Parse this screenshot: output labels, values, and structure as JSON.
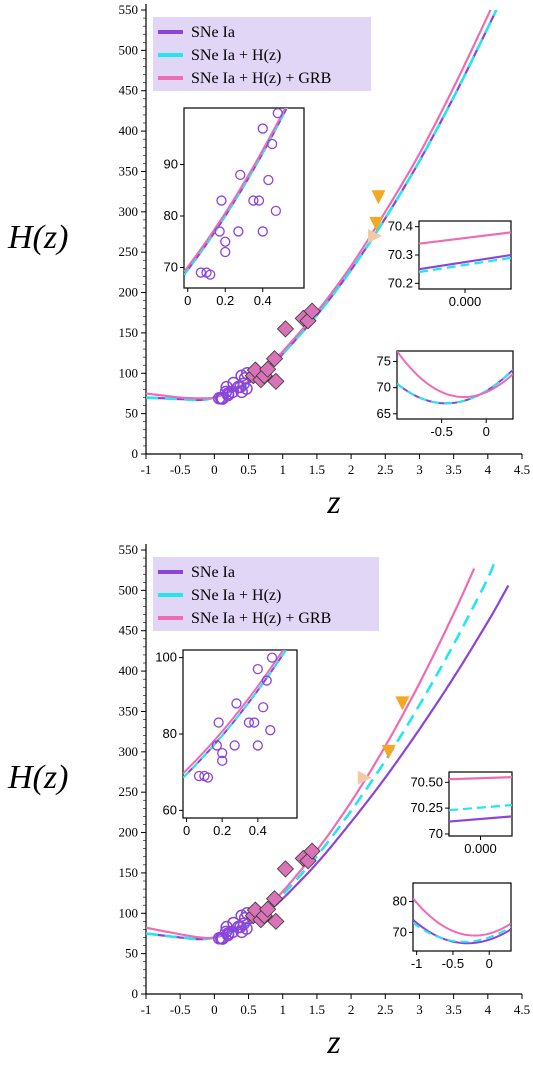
{
  "chart_data": [
    {
      "type": "line",
      "ylabel": "H(z)",
      "xlabel": "z",
      "xlim": [
        -1,
        4.5
      ],
      "ylim": [
        0,
        550
      ],
      "xticks": [
        "-1",
        "-0.5",
        "0",
        "0.5",
        "1",
        "1.5",
        "2",
        "2.5",
        "3",
        "3.5",
        "4",
        "4.5"
      ],
      "yticks": [
        "0",
        "50",
        "100",
        "150",
        "200",
        "250",
        "300",
        "350",
        "400",
        "450",
        "500",
        "550"
      ],
      "legend_position": "top-left",
      "series": [
        {
          "name": "SNe Ia",
          "color": "#8b44d9",
          "style": "solid",
          "x": [
            -1,
            -0.5,
            -0.2,
            0,
            0.2,
            0.5,
            0.8,
            1,
            1.5,
            2,
            2.5,
            3,
            3.5,
            4,
            4.2
          ],
          "y": [
            70,
            68,
            67,
            70,
            76,
            88,
            108,
            124,
            172,
            228,
            292,
            363,
            442,
            528,
            564
          ]
        },
        {
          "name": "SNe Ia + H(z)",
          "color": "#22e6f0",
          "style": "dashed",
          "x": [
            -1,
            -0.5,
            -0.2,
            0,
            0.2,
            0.5,
            0.8,
            1,
            1.5,
            2,
            2.5,
            3,
            3.5,
            4,
            4.2
          ],
          "y": [
            70,
            68,
            67,
            70,
            76,
            88,
            108,
            124,
            172,
            228,
            292,
            363,
            442,
            528,
            564
          ]
        },
        {
          "name": "SNe Ia + H(z) + GRB",
          "color": "#ee6cb4",
          "style": "solid",
          "x": [
            -1,
            -0.5,
            -0.2,
            0,
            0.2,
            0.5,
            0.8,
            1,
            1.5,
            2,
            2.5,
            3,
            3.5,
            4,
            4.1
          ],
          "y": [
            75,
            70,
            69,
            70,
            77,
            90,
            110,
            127,
            176,
            233,
            300,
            372,
            454,
            543,
            562
          ]
        }
      ],
      "circles": {
        "x": [
          0.07,
          0.1,
          0.12,
          0.17,
          0.18,
          0.2,
          0.2,
          0.27,
          0.28,
          0.35,
          0.38,
          0.4,
          0.4,
          0.43,
          0.45,
          0.47,
          0.48
        ],
        "y": [
          69,
          69,
          68.6,
          77,
          83,
          75,
          73,
          77,
          88,
          83,
          83,
          77,
          97,
          87,
          94,
          81,
          100
        ]
      },
      "diamonds": {
        "x": [
          0.57,
          0.6,
          0.68,
          0.73,
          0.78,
          0.88,
          0.9,
          1.04,
          1.3,
          1.37,
          1.43
        ],
        "y": [
          97,
          104,
          92,
          97,
          105,
          118,
          90,
          155,
          168,
          165,
          177
        ]
      },
      "triangles": [
        {
          "x": 2.35,
          "y": 270,
          "color": "#f4c9a8",
          "dir": "right"
        },
        {
          "x": 2.37,
          "y": 285,
          "color": "#f5a623",
          "dir": "down"
        },
        {
          "x": 2.4,
          "y": 318,
          "color": "#f5a623",
          "dir": "down"
        }
      ],
      "inset_circles": {
        "xticks": [
          "0",
          "0.2",
          "0.4"
        ],
        "yticks": [
          "70",
          "80",
          "90"
        ],
        "xlim": [
          -0.02,
          0.62
        ],
        "ylim": [
          66,
          101
        ]
      },
      "inset_zoom": {
        "xticks": [
          "0.000"
        ],
        "yticks": [
          "70.2",
          "70.3",
          "70.4"
        ],
        "ylim": [
          70.18,
          70.42
        ],
        "lines": [
          {
            "series": "SNe Ia",
            "y0": 70.25,
            "y1": 70.3
          },
          {
            "series": "SNe Ia + H(z)",
            "y0": 70.24,
            "y1": 70.29
          },
          {
            "series": "SNe Ia + H(z) + GRB",
            "y0": 70.34,
            "y1": 70.38
          }
        ]
      },
      "inset_low": {
        "xticks": [
          "-0.5",
          "0"
        ],
        "yticks": [
          "65",
          "70",
          "75"
        ],
        "xlim": [
          -1,
          0.3
        ],
        "ylim": [
          64,
          77
        ]
      }
    },
    {
      "type": "line",
      "ylabel": "H(z)",
      "xlabel": "z",
      "xlim": [
        -1,
        4.5
      ],
      "ylim": [
        0,
        550
      ],
      "xticks": [
        "-1",
        "-0.5",
        "0",
        "0.5",
        "1",
        "1.5",
        "2",
        "2.5",
        "3",
        "3.5",
        "4",
        "4.5"
      ],
      "yticks": [
        "0",
        "50",
        "100",
        "150",
        "200",
        "250",
        "300",
        "350",
        "400",
        "450",
        "500",
        "550"
      ],
      "legend_position": "top-left",
      "series": [
        {
          "name": "SNe Ia",
          "color": "#8b44d9",
          "style": "solid",
          "x": [
            -1,
            -0.5,
            -0.2,
            0,
            0.2,
            0.5,
            0.8,
            1,
            1.5,
            2,
            2.5,
            3,
            3.5,
            4,
            4.3
          ],
          "y": [
            75,
            70,
            68,
            70,
            75,
            86,
            104,
            118,
            162,
            213,
            268,
            328,
            392,
            461,
            506
          ]
        },
        {
          "name": "SNe Ia + H(z)",
          "color": "#22e6f0",
          "style": "dashed",
          "x": [
            -1,
            -0.5,
            -0.2,
            0,
            0.2,
            0.5,
            0.8,
            1,
            1.5,
            2,
            2.5,
            3,
            3.5,
            4,
            4.1
          ],
          "y": [
            75,
            70,
            68,
            70,
            76,
            88,
            107,
            123,
            171,
            227,
            289,
            358,
            433,
            515,
            538
          ]
        },
        {
          "name": "SNe Ia + H(z) + GRB",
          "color": "#ee6cb4",
          "style": "solid",
          "x": [
            -1,
            -0.5,
            -0.2,
            0,
            0.2,
            0.5,
            0.8,
            1,
            1.5,
            2,
            2.5,
            3,
            3.5,
            3.8
          ],
          "y": [
            82,
            74,
            70,
            70,
            77,
            90,
            110,
            127,
            178,
            238,
            307,
            385,
            471,
            527
          ]
        }
      ],
      "circles": {
        "x": [
          0.07,
          0.1,
          0.12,
          0.17,
          0.18,
          0.2,
          0.2,
          0.27,
          0.28,
          0.35,
          0.38,
          0.4,
          0.4,
          0.43,
          0.45,
          0.47,
          0.48
        ],
        "y": [
          69,
          69,
          68.6,
          77,
          83,
          75,
          73,
          77,
          88,
          83,
          83,
          77,
          97,
          87,
          94,
          81,
          100
        ]
      },
      "diamonds": {
        "x": [
          0.57,
          0.6,
          0.68,
          0.73,
          0.78,
          0.88,
          0.9,
          1.04,
          1.3,
          1.37,
          1.43
        ],
        "y": [
          97,
          104,
          92,
          97,
          105,
          118,
          90,
          155,
          168,
          165,
          177
        ]
      },
      "triangles": [
        {
          "x": 2.2,
          "y": 268,
          "color": "#f4c9a8",
          "dir": "right"
        },
        {
          "x": 2.55,
          "y": 300,
          "color": "#f5a623",
          "dir": "down"
        },
        {
          "x": 2.75,
          "y": 360,
          "color": "#f5a623",
          "dir": "down"
        }
      ],
      "inset_circles": {
        "xticks": [
          "0",
          "0.2",
          "0.4"
        ],
        "yticks": [
          "60",
          "80",
          "100"
        ],
        "xlim": [
          -0.02,
          0.62
        ],
        "ylim": [
          58,
          102
        ]
      },
      "inset_zoom": {
        "xticks": [
          "0.000"
        ],
        "yticks": [
          "70.50",
          "70.25",
          "70"
        ],
        "ylim": [
          69.98,
          70.6
        ],
        "lines": [
          {
            "series": "SNe Ia",
            "y0": 70.12,
            "y1": 70.17
          },
          {
            "series": "SNe Ia + H(z)",
            "y0": 70.23,
            "y1": 70.28
          },
          {
            "series": "SNe Ia + H(z) + GRB",
            "y0": 70.53,
            "y1": 70.55
          }
        ]
      },
      "inset_low": {
        "xticks": [
          "-1",
          "-0.5",
          "0"
        ],
        "yticks": [
          "70",
          "80"
        ],
        "xlim": [
          -1.05,
          0.3
        ],
        "ylim": [
          64,
          86
        ]
      }
    }
  ]
}
